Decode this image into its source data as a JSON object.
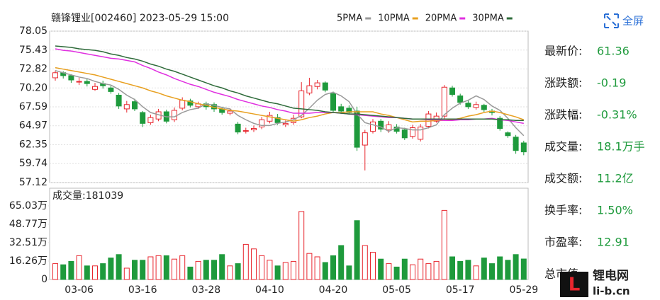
{
  "header": {
    "title": "赣锋锂业[002460] 2023-05-29 15:00",
    "fullscreen": "全屏"
  },
  "chart_data": [
    {
      "type": "candlestick",
      "up_color": "#e8262e",
      "down_color": "#1e9a3c",
      "grid": true,
      "ylim": [
        57.12,
        78.05
      ],
      "yticks": [
        78.05,
        75.43,
        72.82,
        {
          "value": 70.2,
          "label": "70.20"
        },
        67.59,
        64.97,
        62.35,
        59.74,
        57.12
      ],
      "open": [
        71.6,
        72.3,
        71.9,
        71.0,
        71.1,
        70.0,
        70.8,
        70.2,
        69.2,
        67.3,
        68.3,
        66.8,
        65.4,
        65.9,
        66.9,
        65.8,
        67.4,
        68.4,
        67.6,
        68.0,
        67.9,
        67.3,
        66.7,
        65.2,
        64.2,
        64.4,
        64.8,
        65.6,
        66.1,
        65.1,
        65.4,
        66.2,
        69.5,
        70.4,
        70.9,
        69.4,
        67.6,
        67.4,
        67.0,
        62.3,
        64.2,
        65.6,
        64.4,
        64.8,
        64.4,
        63.5,
        63.1,
        64.9,
        65.6,
        66.3,
        70.2,
        69.1,
        68.1,
        67.5,
        67.8,
        67.0,
        66.0,
        64.0,
        63.4,
        62.6
      ],
      "high": [
        72.6,
        72.5,
        72.1,
        71.6,
        71.4,
        70.9,
        71.2,
        70.5,
        69.5,
        68.4,
        68.7,
        67.0,
        66.5,
        67.3,
        67.2,
        67.5,
        68.9,
        68.7,
        68.3,
        68.3,
        68.2,
        67.6,
        67.4,
        65.5,
        64.7,
        65.0,
        66.2,
        66.9,
        66.6,
        65.7,
        66.5,
        71.0,
        71.6,
        71.3,
        71.1,
        69.7,
        68.0,
        67.8,
        67.6,
        64.4,
        65.9,
        65.9,
        65.6,
        65.2,
        64.7,
        65.1,
        65.2,
        67.0,
        66.8,
        70.6,
        70.5,
        69.4,
        68.5,
        68.3,
        68.0,
        67.3,
        66.3,
        64.2,
        63.7,
        62.9
      ],
      "low": [
        71.2,
        71.5,
        70.9,
        70.6,
        70.4,
        69.8,
        70.1,
        69.4,
        67.3,
        66.8,
        67.0,
        64.8,
        65.1,
        65.6,
        65.3,
        65.5,
        67.1,
        67.5,
        67.3,
        67.2,
        66.9,
        66.5,
        66.4,
        63.8,
        63.9,
        64.1,
        64.5,
        65.3,
        65.1,
        64.8,
        65.1,
        66.0,
        69.2,
        70.0,
        69.6,
        66.8,
        66.6,
        66.5,
        61.5,
        58.8,
        63.9,
        64.1,
        64.0,
        63.9,
        63.0,
        63.2,
        62.8,
        64.6,
        65.4,
        65.8,
        69.0,
        67.9,
        67.3,
        67.2,
        66.9,
        66.4,
        64.3,
        63.3,
        61.1,
        60.9
      ],
      "close": [
        72.3,
        71.9,
        71.3,
        71.1,
        70.8,
        70.4,
        70.5,
        69.7,
        67.7,
        67.9,
        67.3,
        65.3,
        66.1,
        66.9,
        65.6,
        67.1,
        68.5,
        67.8,
        68.0,
        67.6,
        67.3,
        66.8,
        67.0,
        64.1,
        64.3,
        64.6,
        65.8,
        66.4,
        65.4,
        65.3,
        66.0,
        69.8,
        70.5,
        70.9,
        69.9,
        67.1,
        67.0,
        66.8,
        62.0,
        64.0,
        65.5,
        64.5,
        65.1,
        64.2,
        63.3,
        64.7,
        64.8,
        66.6,
        66.3,
        70.3,
        69.3,
        68.2,
        67.6,
        67.9,
        67.2,
        66.8,
        64.6,
        63.6,
        61.55,
        61.36
      ],
      "series": [
        {
          "name": "5PMA",
          "color": "#9a9a9a",
          "values": [
            72.6,
            72.3,
            72.0,
            71.7,
            71.5,
            71.1,
            70.8,
            70.6,
            70.0,
            69.2,
            68.6,
            67.6,
            66.8,
            66.5,
            66.2,
            66.2,
            66.8,
            67.2,
            67.4,
            68.0,
            67.8,
            67.5,
            67.3,
            66.4,
            65.8,
            65.3,
            65.0,
            65.0,
            65.3,
            65.5,
            65.8,
            66.4,
            67.4,
            68.5,
            69.3,
            69.6,
            69.1,
            68.3,
            66.6,
            65.4,
            65.1,
            64.8,
            64.2,
            64.7,
            64.6,
            64.4,
            64.4,
            64.7,
            65.1,
            66.5,
            67.4,
            68.1,
            68.5,
            69.1,
            68.6,
            67.7,
            67.1,
            66.0,
            64.7,
            63.6
          ]
        },
        {
          "name": "10PMA",
          "color": "#e8a020",
          "values": [
            73.0,
            72.8,
            72.6,
            72.4,
            72.2,
            72.0,
            71.7,
            71.4,
            71.1,
            70.8,
            70.5,
            70.2,
            69.8,
            69.5,
            69.1,
            68.8,
            68.5,
            68.3,
            68.0,
            67.8,
            67.5,
            67.3,
            67.1,
            67.0,
            66.8,
            66.6,
            66.4,
            66.2,
            66.0,
            65.8,
            65.6,
            65.8,
            66.1,
            66.3,
            66.6,
            66.8,
            66.8,
            66.9,
            66.9,
            66.9,
            66.9,
            66.6,
            66.4,
            66.1,
            65.8,
            65.5,
            65.6,
            65.6,
            65.7,
            65.7,
            65.8,
            66.0,
            66.3,
            66.5,
            66.8,
            67.0,
            66.8,
            66.5,
            66.2,
            65.8
          ]
        },
        {
          "name": "20PMA",
          "color": "#e030e0",
          "values": [
            75.6,
            75.4,
            75.3,
            75.1,
            74.9,
            74.7,
            74.5,
            74.3,
            74.2,
            74.0,
            73.8,
            73.3,
            72.9,
            72.4,
            72.0,
            71.5,
            71.1,
            70.7,
            70.4,
            70.0,
            69.6,
            69.3,
            69.0,
            68.6,
            68.3,
            68.0,
            67.7,
            67.5,
            67.2,
            67.0,
            66.7,
            66.7,
            66.7,
            66.8,
            66.8,
            66.8,
            66.7,
            66.6,
            66.5,
            66.4,
            66.3,
            66.2,
            66.1,
            66.1,
            66.0,
            65.9,
            65.9,
            65.8,
            65.8,
            65.7,
            65.7,
            65.8,
            65.8,
            65.9,
            65.9,
            66.0,
            65.8,
            65.7,
            65.5,
            65.3
          ]
        },
        {
          "name": "30PMA",
          "color": "#2e6b3a",
          "values": [
            76.0,
            75.9,
            75.8,
            75.6,
            75.5,
            75.4,
            75.2,
            74.9,
            74.7,
            74.4,
            74.2,
            73.9,
            73.5,
            73.2,
            72.8,
            72.5,
            72.1,
            71.7,
            71.3,
            70.9,
            70.5,
            70.2,
            69.8,
            69.5,
            69.1,
            68.8,
            68.5,
            68.2,
            68.0,
            67.7,
            67.4,
            67.3,
            67.2,
            67.1,
            66.9,
            66.8,
            66.7,
            66.6,
            66.6,
            66.5,
            66.4,
            66.3,
            66.2,
            66.1,
            66.0,
            65.9,
            65.9,
            65.9,
            65.9,
            65.9,
            65.9,
            65.9,
            65.9,
            65.9,
            65.9,
            65.9,
            65.8,
            65.8,
            65.7,
            65.7
          ]
        }
      ]
    },
    {
      "type": "bar",
      "title": "成交量:181039",
      "ylim": [
        0,
        80.6
      ],
      "yticks": [
        {
          "value": 65.03,
          "label": "65.03万"
        },
        {
          "value": 48.77,
          "label": "48.77万"
        },
        {
          "value": 32.51,
          "label": "32.51万"
        },
        {
          "value": 16.26,
          "label": "16.26万"
        },
        0
      ],
      "categories": [
        null,
        null,
        null,
        "03-06",
        null,
        null,
        null,
        null,
        null,
        null,
        null,
        "03-16",
        null,
        null,
        null,
        null,
        null,
        null,
        null,
        "03-28",
        null,
        null,
        null,
        null,
        null,
        null,
        null,
        "04-10",
        null,
        null,
        null,
        null,
        null,
        null,
        null,
        "04-20",
        null,
        null,
        null,
        null,
        null,
        null,
        null,
        "05-05",
        null,
        null,
        null,
        null,
        null,
        null,
        null,
        "05-17",
        null,
        null,
        null,
        null,
        null,
        null,
        null,
        "05-29"
      ],
      "values": [
        14,
        13,
        16,
        21,
        12,
        12,
        14,
        19,
        22,
        10,
        17,
        17,
        20,
        21,
        21,
        18,
        21,
        11,
        16,
        17,
        17,
        22,
        12,
        14,
        31,
        27,
        21,
        17,
        12,
        15,
        16,
        60,
        23,
        20,
        15,
        21,
        30,
        12,
        52,
        30,
        24,
        18,
        14,
        11,
        18,
        13,
        18,
        14,
        16,
        61,
        20,
        16,
        17,
        12,
        19,
        14,
        20,
        17,
        22,
        18.1
      ]
    }
  ],
  "quote": [
    {
      "label": "最新价:",
      "value": "61.36"
    },
    {
      "label": "涨跌额:",
      "value": "-0.19"
    },
    {
      "label": "涨跌幅:",
      "value": "-0.31%"
    },
    {
      "label": "成交量:",
      "value": "18.1万手"
    },
    {
      "label": "成交额:",
      "value": "11.2亿"
    },
    {
      "label": "换手率:",
      "value": "1.50%"
    },
    {
      "label": "市盈率:",
      "value": "12.91"
    },
    {
      "label": "总市值:"
    }
  ],
  "watermark": {
    "name": "锂电网",
    "url": "li-b.cn"
  }
}
